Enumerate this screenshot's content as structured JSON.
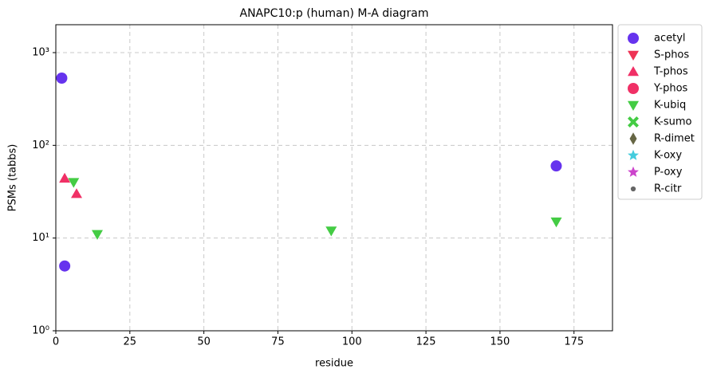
{
  "chart_data": {
    "type": "scatter",
    "title": "ANAPC10:p (human) M-A diagram",
    "xlabel": "residue",
    "ylabel": "PSMs (tabbs)",
    "xlim": [
      0,
      188
    ],
    "xticks": [
      0,
      25,
      50,
      75,
      100,
      125,
      150,
      175
    ],
    "ylim": [
      1,
      2000
    ],
    "ylog": true,
    "yticks": [
      {
        "value": 1,
        "label": "10⁰"
      },
      {
        "value": 10,
        "label": "10¹"
      },
      {
        "value": 100,
        "label": "10²"
      },
      {
        "value": 1000,
        "label": "10³"
      }
    ],
    "grid": true,
    "legend": "outside-right",
    "series": [
      {
        "name": "acetyl",
        "color": "#6633ee",
        "marker": "circle",
        "x": [
          2,
          3,
          169
        ],
        "values": [
          531,
          5,
          60
        ]
      },
      {
        "name": "S-phos",
        "color": "#ee3355",
        "marker": "triangle-down",
        "x": [],
        "values": []
      },
      {
        "name": "T-phos",
        "color": "#f03066",
        "marker": "triangle-up",
        "x": [
          3,
          7
        ],
        "values": [
          44,
          30
        ]
      },
      {
        "name": "Y-phos",
        "color": "#f03066",
        "marker": "circle",
        "x": [],
        "values": []
      },
      {
        "name": "K-ubiq",
        "color": "#44cc44",
        "marker": "triangle-down",
        "x": [
          6,
          14,
          93,
          169
        ],
        "values": [
          40,
          11,
          12,
          15
        ]
      },
      {
        "name": "K-sumo",
        "color": "#44cc44",
        "marker": "x",
        "x": [],
        "values": []
      },
      {
        "name": "R-dimet",
        "color": "#666644",
        "marker": "diamond",
        "x": [],
        "values": []
      },
      {
        "name": "K-oxy",
        "color": "#44ccdd",
        "marker": "star",
        "x": [],
        "values": []
      },
      {
        "name": "P-oxy",
        "color": "#cc44cc",
        "marker": "star",
        "x": [],
        "values": []
      },
      {
        "name": "R-citr",
        "color": "#666666",
        "marker": "dot",
        "x": [],
        "values": []
      }
    ]
  }
}
